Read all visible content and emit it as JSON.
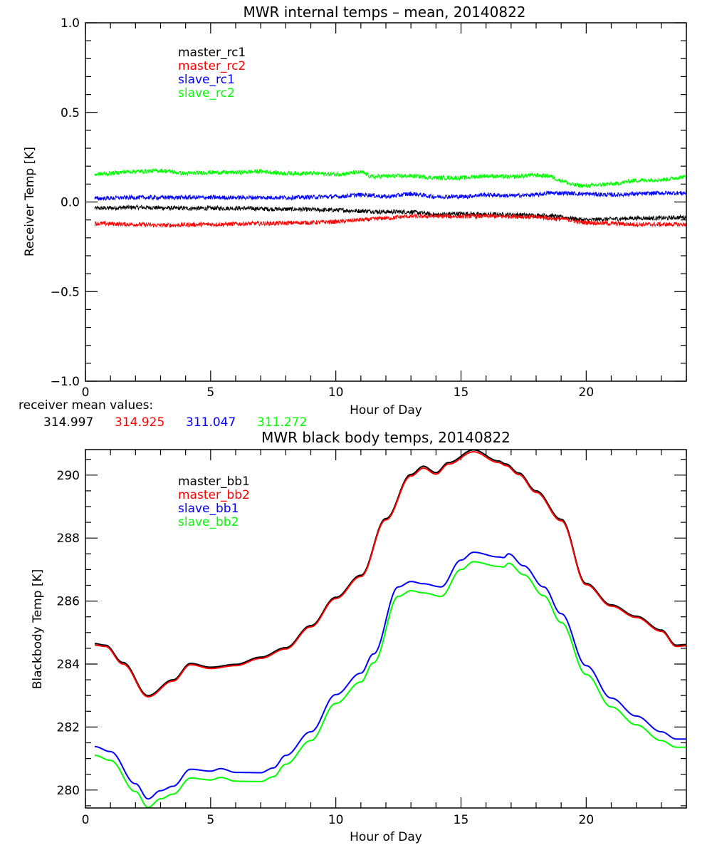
{
  "chart_data": [
    {
      "type": "line",
      "title": "MWR internal temps – mean, 20140822",
      "xlabel": "Hour of Day",
      "ylabel": "Receiver Temp [K]",
      "xlim": [
        0,
        24
      ],
      "ylim": [
        -1.0,
        1.0
      ],
      "xticks": [
        0,
        5,
        10,
        15,
        20
      ],
      "xtick_labels": [
        "0",
        "5",
        "10",
        "15",
        "20"
      ],
      "x_minor_step": 1,
      "yticks": [
        -1.0,
        -0.5,
        0.0,
        0.5,
        1.0
      ],
      "ytick_labels": [
        "−1.0",
        "−0.5",
        "0.0",
        "0.5",
        "1.0"
      ],
      "y_minor_step": 0.1,
      "grid": false,
      "legend_position": "top-left",
      "noisy": true,
      "series": [
        {
          "name": "master_rc1",
          "color": "#000000",
          "x": [
            0.37,
            2,
            4,
            6,
            8,
            10,
            11,
            12,
            13,
            13.3,
            14,
            15,
            16,
            17,
            18,
            18.5,
            19,
            20,
            21,
            22,
            23,
            24
          ],
          "y": [
            -0.035,
            -0.03,
            -0.035,
            -0.035,
            -0.04,
            -0.045,
            -0.05,
            -0.055,
            -0.055,
            -0.06,
            -0.07,
            -0.065,
            -0.07,
            -0.07,
            -0.075,
            -0.075,
            -0.085,
            -0.1,
            -0.095,
            -0.09,
            -0.09,
            -0.085
          ]
        },
        {
          "name": "master_rc2",
          "color": "#ff0000",
          "x": [
            0.37,
            2,
            3,
            5,
            7,
            9,
            10,
            11,
            12,
            13,
            14,
            15,
            16,
            17,
            18,
            19,
            20,
            21,
            22,
            23,
            24
          ],
          "y": [
            -0.12,
            -0.125,
            -0.13,
            -0.125,
            -0.12,
            -0.115,
            -0.11,
            -0.1,
            -0.09,
            -0.08,
            -0.08,
            -0.08,
            -0.08,
            -0.08,
            -0.085,
            -0.095,
            -0.115,
            -0.12,
            -0.125,
            -0.125,
            -0.125
          ]
        },
        {
          "name": "slave_rc1",
          "color": "#0000ff",
          "x": [
            0.37,
            2,
            4,
            6,
            8,
            10,
            11,
            11.2,
            12,
            13,
            14,
            15,
            16,
            17,
            18,
            18.5,
            19,
            20,
            21,
            22,
            23,
            24
          ],
          "y": [
            0.02,
            0.025,
            0.025,
            0.025,
            0.025,
            0.03,
            0.04,
            0.04,
            0.03,
            0.045,
            0.03,
            0.03,
            0.04,
            0.035,
            0.04,
            0.05,
            0.05,
            0.045,
            0.04,
            0.045,
            0.05,
            0.05
          ]
        },
        {
          "name": "slave_rc2",
          "color": "#00ff00",
          "x": [
            0.37,
            2,
            3,
            4,
            5,
            6,
            7,
            8,
            9,
            10,
            11,
            11.5,
            12,
            13,
            14,
            15,
            16,
            17,
            18,
            18.5,
            19,
            19.5,
            20,
            21,
            22,
            23,
            24
          ],
          "y": [
            0.155,
            0.17,
            0.175,
            0.16,
            0.165,
            0.165,
            0.17,
            0.16,
            0.16,
            0.155,
            0.165,
            0.14,
            0.145,
            0.145,
            0.135,
            0.135,
            0.145,
            0.14,
            0.15,
            0.145,
            0.12,
            0.095,
            0.09,
            0.1,
            0.12,
            0.125,
            0.14
          ]
        }
      ],
      "annotation": {
        "label": "receiver mean values:",
        "values": [
          {
            "text": "314.997",
            "color": "#000000"
          },
          {
            "text": "314.925",
            "color": "#ff0000"
          },
          {
            "text": "311.047",
            "color": "#0000ff"
          },
          {
            "text": "311.272",
            "color": "#00ff00"
          }
        ]
      }
    },
    {
      "type": "line",
      "title": "MWR black body temps, 20140822",
      "xlabel": "Hour of Day",
      "ylabel": "Blackbody Temp [K]",
      "xlim": [
        0,
        24
      ],
      "ylim": [
        279.43,
        290.81
      ],
      "xticks": [
        0,
        5,
        10,
        15,
        20
      ],
      "xtick_labels": [
        "0",
        "5",
        "10",
        "15",
        "20"
      ],
      "x_minor_step": 1,
      "yticks": [
        280,
        282,
        284,
        286,
        288,
        290
      ],
      "ytick_labels": [
        "280",
        "282",
        "284",
        "286",
        "288",
        "290"
      ],
      "y_minor_step": 0.5,
      "grid": false,
      "legend_position": "top-left",
      "noisy": false,
      "series": [
        {
          "name": "master_bb1",
          "color": "#000000",
          "x": [
            0.37,
            0.8,
            1.5,
            2.5,
            3.5,
            4.2,
            5,
            6,
            7,
            8,
            9,
            10,
            11,
            12,
            13,
            13.5,
            14,
            14.5,
            15.5,
            16.5,
            16.8,
            17.3,
            18,
            19,
            20,
            21,
            22,
            23,
            23.6,
            24
          ],
          "y": [
            284.65,
            284.6,
            284.05,
            283.0,
            283.5,
            284.02,
            283.9,
            283.99,
            284.22,
            284.52,
            285.22,
            286.12,
            286.82,
            288.62,
            290.02,
            290.28,
            290.08,
            290.4,
            290.8,
            290.45,
            290.35,
            290.07,
            289.5,
            288.6,
            286.56,
            285.88,
            285.52,
            285.08,
            284.6,
            284.62
          ]
        },
        {
          "name": "master_bb2",
          "color": "#ff0000",
          "x": [
            0.37,
            0.8,
            1.5,
            2.5,
            3.5,
            4.2,
            5,
            6,
            7,
            8,
            9,
            10,
            11,
            12,
            13,
            13.5,
            14,
            14.5,
            15.5,
            16.5,
            16.8,
            17.3,
            18,
            19,
            20,
            21,
            22,
            23,
            23.6,
            24
          ],
          "y": [
            284.6,
            284.56,
            284.0,
            282.96,
            283.46,
            283.98,
            283.86,
            283.95,
            284.18,
            284.48,
            285.18,
            286.08,
            286.78,
            288.58,
            289.97,
            290.22,
            290.03,
            290.35,
            290.74,
            290.4,
            290.3,
            290.02,
            289.45,
            288.55,
            286.52,
            285.84,
            285.48,
            285.04,
            284.56,
            284.58
          ]
        },
        {
          "name": "slave_bb1",
          "color": "#0000ff",
          "x": [
            0.37,
            1.0,
            2.0,
            2.5,
            3.0,
            3.5,
            4.2,
            5,
            5.4,
            6,
            7,
            7.5,
            8,
            9,
            10,
            11,
            11.5,
            12.5,
            13,
            13.5,
            14.2,
            15,
            15.5,
            16.5,
            16.7,
            16.9,
            17.5,
            18.3,
            19,
            20,
            21,
            22,
            23,
            23.6,
            24
          ],
          "y": [
            281.38,
            281.22,
            280.2,
            279.72,
            279.98,
            280.12,
            280.66,
            280.6,
            280.68,
            280.56,
            280.55,
            280.7,
            281.1,
            281.85,
            283.03,
            283.71,
            284.32,
            286.45,
            286.62,
            286.55,
            286.45,
            287.3,
            287.55,
            287.4,
            287.38,
            287.5,
            287.12,
            286.45,
            285.6,
            283.95,
            282.92,
            282.35,
            281.85,
            281.62,
            281.62
          ]
        },
        {
          "name": "slave_bb2",
          "color": "#00ff00",
          "x": [
            0.37,
            1.0,
            2.0,
            2.5,
            3.0,
            3.5,
            4.2,
            5,
            5.4,
            6,
            7,
            7.5,
            8,
            9,
            10,
            11,
            11.5,
            12.5,
            13,
            13.5,
            14.2,
            15,
            15.5,
            16.5,
            16.7,
            16.9,
            17.5,
            18.3,
            19,
            20,
            21,
            22,
            23,
            23.6,
            24
          ],
          "y": [
            281.1,
            280.94,
            279.95,
            279.45,
            279.72,
            279.87,
            280.38,
            280.32,
            280.4,
            280.28,
            280.27,
            280.42,
            280.82,
            281.57,
            282.75,
            283.43,
            284.04,
            286.15,
            286.33,
            286.26,
            286.15,
            287.0,
            287.25,
            287.1,
            287.08,
            287.2,
            286.84,
            286.17,
            285.32,
            283.67,
            282.64,
            282.07,
            281.57,
            281.36,
            281.36
          ]
        }
      ]
    }
  ]
}
